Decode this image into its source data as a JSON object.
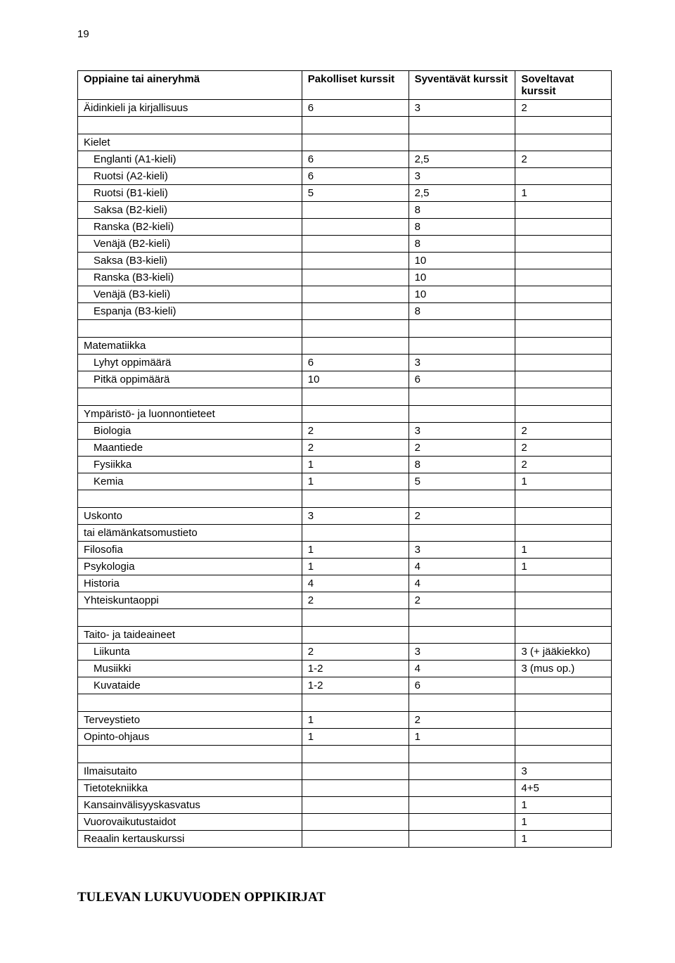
{
  "page_number": "19",
  "table": {
    "headers": [
      "Oppiaine tai aineryhmä",
      "Pakolliset kurssit",
      "Syventävät kurssit",
      "Soveltavat kurssit"
    ],
    "sections": [
      {
        "rows": [
          {
            "label": "Äidinkieli ja kirjallisuus",
            "pak": "6",
            "syv": "3",
            "sov": "2",
            "indent": false
          }
        ]
      },
      {
        "rows": [
          {
            "label": "Kielet",
            "pak": "",
            "syv": "",
            "sov": "",
            "indent": false
          },
          {
            "label": "Englanti (A1-kieli)",
            "pak": "6",
            "syv": "2,5",
            "sov": "2",
            "indent": true
          },
          {
            "label": "Ruotsi (A2-kieli)",
            "pak": "6",
            "syv": "3",
            "sov": "",
            "indent": true
          },
          {
            "label": "Ruotsi (B1-kieli)",
            "pak": "5",
            "syv": "2,5",
            "sov": "1",
            "indent": true
          },
          {
            "label": "Saksa (B2-kieli)",
            "pak": "",
            "syv": "8",
            "sov": "",
            "indent": true
          },
          {
            "label": "Ranska (B2-kieli)",
            "pak": "",
            "syv": "8",
            "sov": "",
            "indent": true
          },
          {
            "label": "Venäjä (B2-kieli)",
            "pak": "",
            "syv": "8",
            "sov": "",
            "indent": true
          },
          {
            "label": "Saksa (B3-kieli)",
            "pak": "",
            "syv": "10",
            "sov": "",
            "indent": true
          },
          {
            "label": "Ranska (B3-kieli)",
            "pak": "",
            "syv": "10",
            "sov": "",
            "indent": true
          },
          {
            "label": "Venäjä (B3-kieli)",
            "pak": "",
            "syv": "10",
            "sov": "",
            "indent": true
          },
          {
            "label": "Espanja (B3-kieli)",
            "pak": "",
            "syv": "8",
            "sov": "",
            "indent": true
          }
        ]
      },
      {
        "rows": [
          {
            "label": "Matematiikka",
            "pak": "",
            "syv": "",
            "sov": "",
            "indent": false
          },
          {
            "label": "Lyhyt oppimäärä",
            "pak": "6",
            "syv": "3",
            "sov": "",
            "indent": true
          },
          {
            "label": "Pitkä oppimäärä",
            "pak": "10",
            "syv": "6",
            "sov": "",
            "indent": true
          }
        ]
      },
      {
        "rows": [
          {
            "label": "Ympäristö- ja luonnontieteet",
            "pak": "",
            "syv": "",
            "sov": "",
            "indent": false
          },
          {
            "label": "Biologia",
            "pak": "2",
            "syv": "3",
            "sov": "2",
            "indent": true
          },
          {
            "label": "Maantiede",
            "pak": "2",
            "syv": "2",
            "sov": "2",
            "indent": true
          },
          {
            "label": "Fysiikka",
            "pak": "1",
            "syv": "8",
            "sov": "2",
            "indent": true
          },
          {
            "label": "Kemia",
            "pak": "1",
            "syv": "5",
            "sov": "1",
            "indent": true
          }
        ]
      },
      {
        "rows": [
          {
            "label": "Uskonto",
            "pak": "3",
            "syv": "2",
            "sov": "",
            "indent": false
          },
          {
            "label": "tai elämänkatsomustieto",
            "pak": "",
            "syv": "",
            "sov": "",
            "indent": false
          },
          {
            "label": "Filosofia",
            "pak": "1",
            "syv": "3",
            "sov": "1",
            "indent": false
          },
          {
            "label": "Psykologia",
            "pak": "1",
            "syv": "4",
            "sov": "1",
            "indent": false
          },
          {
            "label": "Historia",
            "pak": "4",
            "syv": "4",
            "sov": "",
            "indent": false
          },
          {
            "label": "Yhteiskuntaoppi",
            "pak": "2",
            "syv": "2",
            "sov": "",
            "indent": false
          }
        ]
      },
      {
        "rows": [
          {
            "label": "Taito- ja taideaineet",
            "pak": "",
            "syv": "",
            "sov": "",
            "indent": false
          },
          {
            "label": "Liikunta",
            "pak": "2",
            "syv": "3",
            "sov": "3 (+ jääkiekko)",
            "indent": true
          },
          {
            "label": "Musiikki",
            "pak": "1-2",
            "syv": "4",
            "sov": "3 (mus op.)",
            "indent": true
          },
          {
            "label": "Kuvataide",
            "pak": "1-2",
            "syv": "6",
            "sov": "",
            "indent": true
          }
        ]
      },
      {
        "rows": [
          {
            "label": "Terveystieto",
            "pak": "1",
            "syv": "2",
            "sov": "",
            "indent": false
          },
          {
            "label": "Opinto-ohjaus",
            "pak": "1",
            "syv": "1",
            "sov": "",
            "indent": false
          }
        ]
      },
      {
        "rows": [
          {
            "label": "Ilmaisutaito",
            "pak": "",
            "syv": "",
            "sov": "3",
            "indent": false
          },
          {
            "label": "Tietotekniikka",
            "pak": "",
            "syv": "",
            "sov": "4+5",
            "indent": false
          },
          {
            "label": "Kansainvälisyyskasvatus",
            "pak": "",
            "syv": "",
            "sov": "1",
            "indent": false
          },
          {
            "label": "Vuorovaikutustaidot",
            "pak": "",
            "syv": "",
            "sov": "1",
            "indent": false
          },
          {
            "label": "Reaalin kertauskurssi",
            "pak": "",
            "syv": "",
            "sov": "1",
            "indent": false
          }
        ]
      }
    ]
  },
  "footer_heading": "TULEVAN LUKUVUODEN OPPIKIRJAT"
}
